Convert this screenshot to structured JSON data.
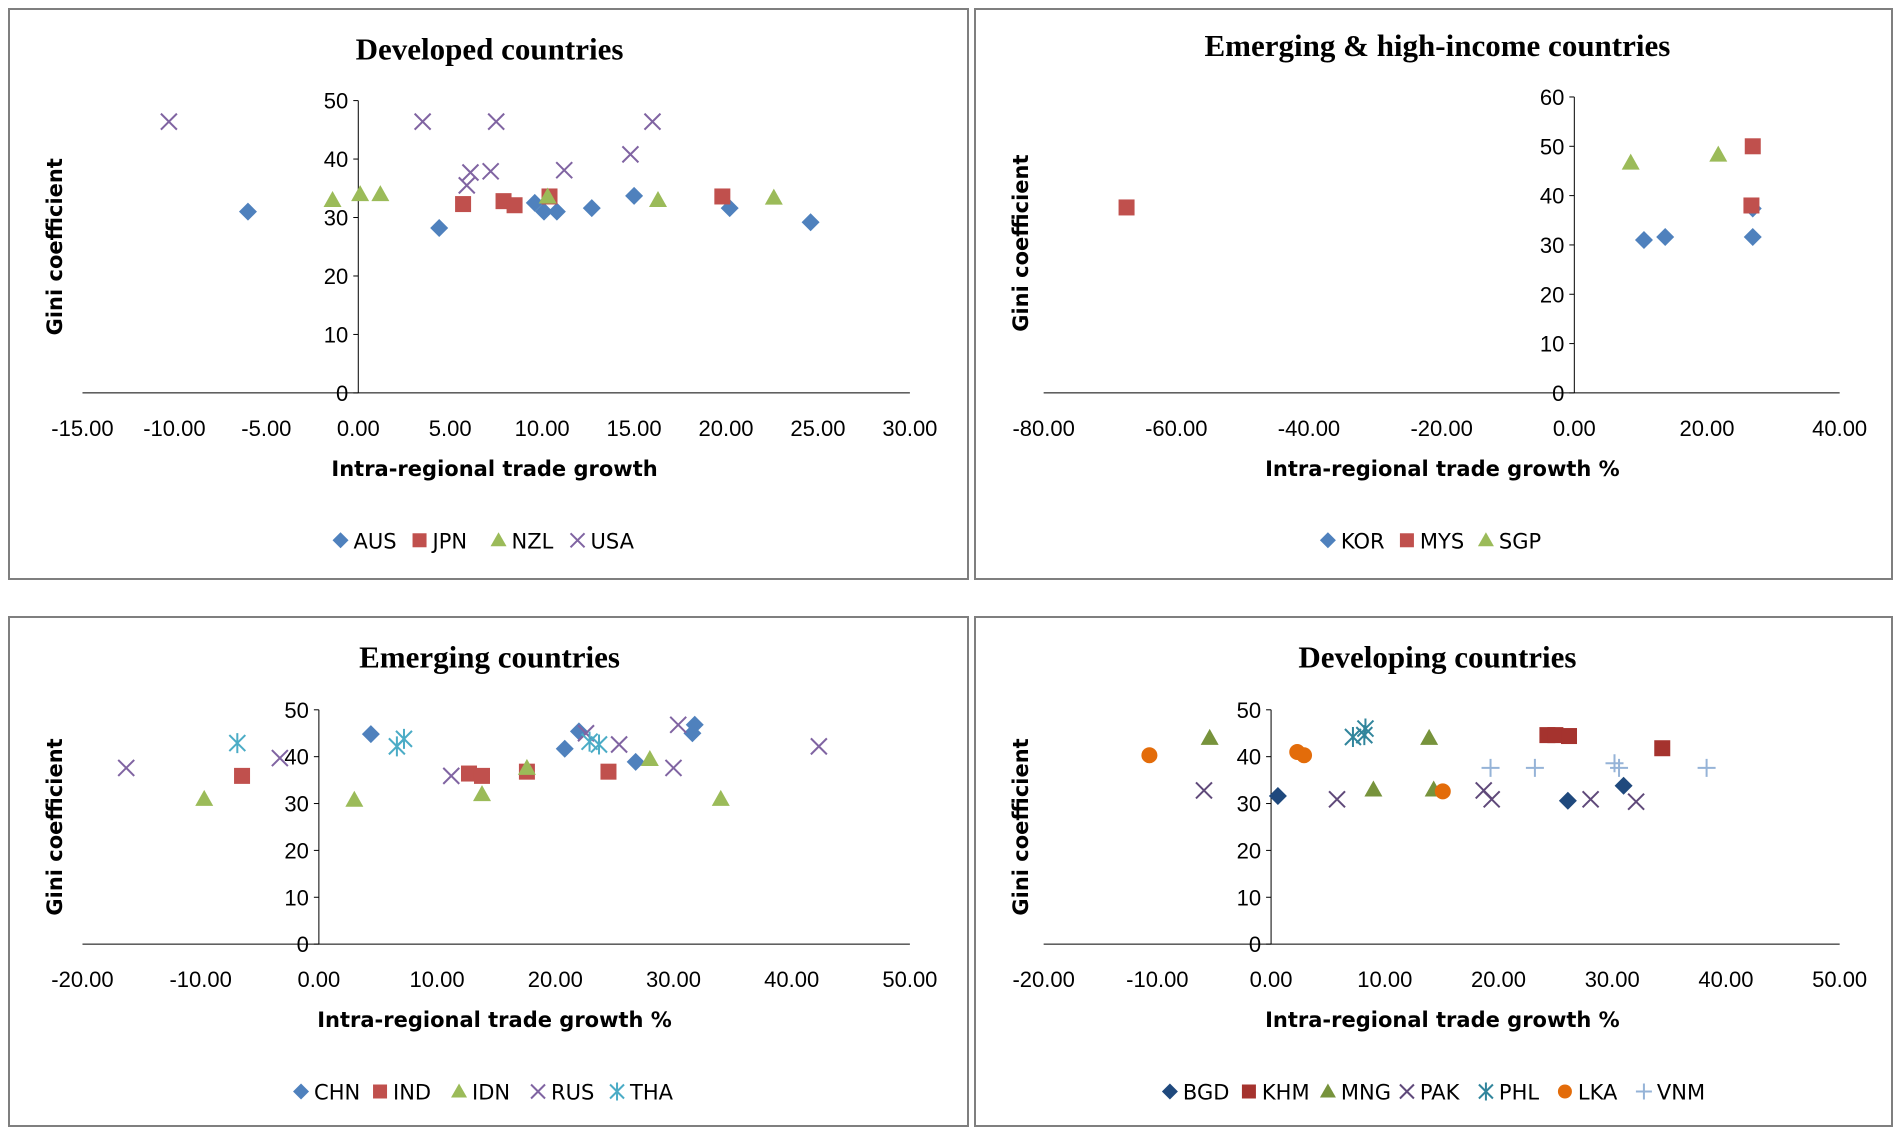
{
  "chart_data": [
    {
      "type": "scatter",
      "title": "Developed countries",
      "xlabel": "Intra-regional trade growth",
      "ylabel": "Gini coefficient",
      "xlim": [
        -15,
        30
      ],
      "ylim": [
        0,
        50
      ],
      "x_ticks": [
        "-15.00",
        "-10.00",
        "-5.00",
        "0.00",
        "5.00",
        "10.00",
        "15.00",
        "20.00",
        "25.00",
        "30.00"
      ],
      "y_ticks": [
        "0",
        "10",
        "20",
        "30",
        "40",
        "50"
      ],
      "legend_position": "bottom",
      "series": [
        {
          "name": "AUS",
          "marker": "diamond",
          "color": "#4F81BD",
          "points": [
            [
              -6.0,
              31.0
            ],
            [
              4.4,
              28.2
            ],
            [
              9.6,
              32.5
            ],
            [
              10.1,
              31.0
            ],
            [
              10.8,
              31.0
            ],
            [
              12.7,
              31.6
            ],
            [
              15.0,
              33.7
            ],
            [
              20.2,
              31.6
            ],
            [
              24.6,
              29.2
            ]
          ]
        },
        {
          "name": "JPN",
          "marker": "square",
          "color": "#C0504D",
          "points": [
            [
              5.7,
              32.3
            ],
            [
              7.9,
              32.8
            ],
            [
              8.5,
              32.1
            ],
            [
              10.4,
              33.6
            ],
            [
              19.8,
              33.6
            ]
          ]
        },
        {
          "name": "NZL",
          "marker": "triangle",
          "color": "#9BBB59",
          "points": [
            [
              -1.4,
              33.0
            ],
            [
              0.1,
              34.0
            ],
            [
              1.2,
              34.0
            ],
            [
              10.3,
              33.6
            ],
            [
              16.3,
              33.0
            ],
            [
              22.6,
              33.4
            ]
          ]
        },
        {
          "name": "USA",
          "marker": "x",
          "color": "#8064A2",
          "points": [
            [
              -10.3,
              46.4
            ],
            [
              3.5,
              46.4
            ],
            [
              5.9,
              35.5
            ],
            [
              6.1,
              37.7
            ],
            [
              7.2,
              37.9
            ],
            [
              7.5,
              46.4
            ],
            [
              11.2,
              38.1
            ],
            [
              14.8,
              40.8
            ],
            [
              16.0,
              46.4
            ]
          ]
        }
      ]
    },
    {
      "type": "scatter",
      "title": "Emerging & high-income countries",
      "xlabel": "Intra-regional trade growth %",
      "ylabel": "Gini coefficient",
      "xlim": [
        -80,
        40
      ],
      "ylim": [
        0,
        60
      ],
      "x_ticks": [
        "-80.00",
        "-60.00",
        "-40.00",
        "-20.00",
        "0.00",
        "20.00",
        "40.00"
      ],
      "y_ticks": [
        "0",
        "10",
        "20",
        "30",
        "40",
        "50",
        "60"
      ],
      "legend_position": "bottom",
      "series": [
        {
          "name": "KOR",
          "marker": "diamond",
          "color": "#4F81BD",
          "points": [
            [
              10.5,
              31.0
            ],
            [
              13.7,
              31.6
            ],
            [
              26.9,
              31.6
            ],
            [
              26.9,
              37.4
            ]
          ]
        },
        {
          "name": "MYS",
          "marker": "square",
          "color": "#C0504D",
          "points": [
            [
              -67.5,
              37.6
            ],
            [
              26.7,
              38.0
            ],
            [
              26.9,
              50.0
            ]
          ]
        },
        {
          "name": "SGP",
          "marker": "triangle",
          "color": "#9BBB59",
          "points": [
            [
              8.5,
              46.7
            ],
            [
              21.7,
              48.3
            ]
          ]
        }
      ]
    },
    {
      "type": "scatter",
      "title": "Emerging countries",
      "xlabel": "Intra-regional trade growth %",
      "ylabel": "Gini coefficient",
      "xlim": [
        -20,
        50
      ],
      "ylim": [
        0,
        50
      ],
      "x_ticks": [
        "-20.00",
        "-10.00",
        "0.00",
        "10.00",
        "20.00",
        "30.00",
        "40.00",
        "50.00"
      ],
      "y_ticks": [
        "0",
        "10",
        "20",
        "30",
        "40",
        "50"
      ],
      "legend_position": "bottom",
      "series": [
        {
          "name": "CHN",
          "marker": "diamond",
          "color": "#4F81BD",
          "points": [
            [
              4.4,
              44.8
            ],
            [
              20.8,
              41.7
            ],
            [
              22.0,
              45.4
            ],
            [
              26.8,
              38.9
            ],
            [
              31.6,
              45.0
            ],
            [
              31.8,
              46.8
            ]
          ]
        },
        {
          "name": "IND",
          "marker": "square",
          "color": "#C0504D",
          "points": [
            [
              -6.5,
              35.9
            ],
            [
              12.7,
              36.4
            ],
            [
              13.8,
              35.9
            ],
            [
              17.6,
              36.8
            ],
            [
              24.5,
              36.8
            ]
          ]
        },
        {
          "name": "IDN",
          "marker": "triangle",
          "color": "#9BBB59",
          "points": [
            [
              -9.7,
              31.0
            ],
            [
              3.0,
              30.8
            ],
            [
              13.8,
              32.0
            ],
            [
              17.6,
              37.6
            ],
            [
              28.0,
              39.5
            ],
            [
              34.0,
              31.0
            ]
          ]
        },
        {
          "name": "RUS",
          "marker": "x",
          "color": "#8064A2",
          "points": [
            [
              -16.3,
              37.6
            ],
            [
              -3.3,
              39.7
            ],
            [
              11.2,
              35.9
            ],
            [
              22.6,
              45.0
            ],
            [
              25.4,
              42.6
            ],
            [
              30.0,
              37.6
            ],
            [
              30.4,
              46.8
            ],
            [
              42.3,
              42.2
            ]
          ]
        },
        {
          "name": "THA",
          "marker": "asterisk",
          "color": "#4BACC6",
          "points": [
            [
              -6.9,
              42.9
            ],
            [
              6.6,
              42.2
            ],
            [
              7.2,
              43.8
            ],
            [
              22.9,
              43.2
            ],
            [
              23.7,
              42.6
            ]
          ]
        }
      ]
    },
    {
      "type": "scatter",
      "title": "Developing countries",
      "xlabel": "Intra-regional trade growth %",
      "ylabel": "Gini coefficient",
      "xlim": [
        -20,
        50
      ],
      "ylim": [
        0,
        50
      ],
      "x_ticks": [
        "-20.00",
        "-10.00",
        "0.00",
        "10.00",
        "20.00",
        "30.00",
        "40.00",
        "50.00"
      ],
      "y_ticks": [
        "0",
        "10",
        "20",
        "30",
        "40",
        "50"
      ],
      "legend_position": "bottom",
      "series": [
        {
          "name": "BGD",
          "marker": "diamond",
          "color": "#1F497D",
          "points": [
            [
              0.6,
              31.6
            ],
            [
              26.1,
              30.6
            ],
            [
              31.0,
              33.8
            ]
          ]
        },
        {
          "name": "KHM",
          "marker": "square",
          "color": "#A5332E",
          "points": [
            [
              24.3,
              44.6
            ],
            [
              25.0,
              44.6
            ],
            [
              26.2,
              44.4
            ],
            [
              34.4,
              41.8
            ]
          ]
        },
        {
          "name": "MNG",
          "marker": "triangle",
          "color": "#77933C",
          "points": [
            [
              -5.4,
              44.0
            ],
            [
              9.0,
              33.0
            ],
            [
              13.9,
              44.0
            ],
            [
              14.3,
              33.0
            ]
          ]
        },
        {
          "name": "PAK",
          "marker": "x",
          "color": "#5F497A",
          "points": [
            [
              -5.9,
              32.8
            ],
            [
              5.8,
              30.9
            ],
            [
              18.7,
              32.8
            ],
            [
              19.4,
              30.9
            ],
            [
              28.1,
              30.9
            ],
            [
              32.1,
              30.4
            ]
          ]
        },
        {
          "name": "PHL",
          "marker": "asterisk",
          "color": "#31859C",
          "points": [
            [
              7.2,
              44.2
            ],
            [
              8.2,
              44.6
            ],
            [
              8.3,
              46.0
            ]
          ]
        },
        {
          "name": "LKA",
          "marker": "circle",
          "color": "#E36C0A",
          "points": [
            [
              -10.7,
              40.3
            ],
            [
              2.3,
              41.0
            ],
            [
              2.9,
              40.3
            ],
            [
              15.1,
              32.6
            ]
          ]
        },
        {
          "name": "VNM",
          "marker": "plus",
          "color": "#95B3D7",
          "points": [
            [
              19.3,
              37.6
            ],
            [
              23.2,
              37.6
            ],
            [
              30.2,
              38.6
            ],
            [
              30.6,
              37.6
            ],
            [
              38.3,
              37.6
            ]
          ]
        }
      ]
    }
  ]
}
